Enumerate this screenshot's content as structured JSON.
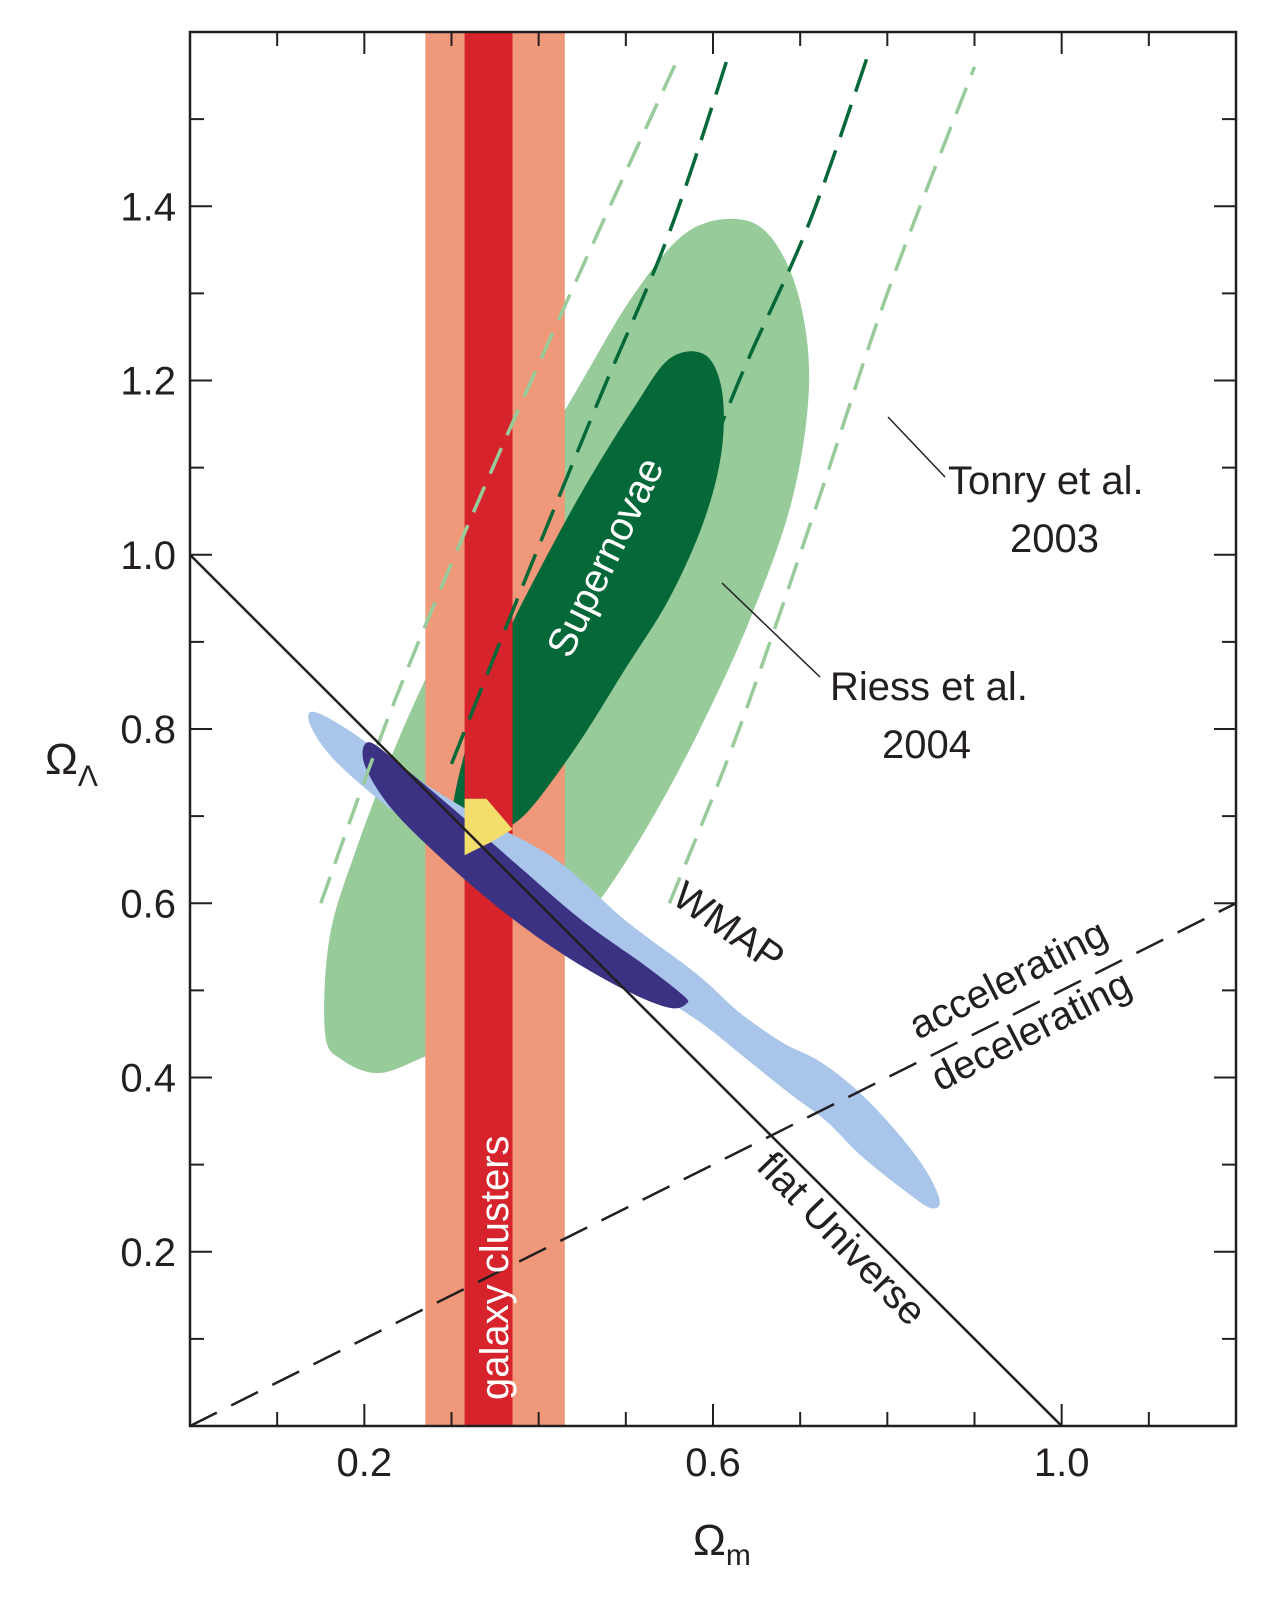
{
  "chart_data": {
    "type": "contour",
    "xlabel": "Ω",
    "xlabel_sub": "m",
    "ylabel": "Ω",
    "ylabel_sub": "Λ",
    "xlim": [
      0.0,
      1.2
    ],
    "ylim": [
      0.0,
      1.6
    ],
    "xticks": [
      0.2,
      0.6,
      1.0
    ],
    "xtick_labels": [
      "0.2",
      "0.6",
      "1.0"
    ],
    "xminor_step": 0.1,
    "yticks": [
      0.2,
      0.4,
      0.6,
      0.8,
      1.0,
      1.2,
      1.4
    ],
    "ytick_labels": [
      "0.2",
      "0.4",
      "0.6",
      "0.8",
      "1.0",
      "1.2",
      "1.4"
    ],
    "yminor_step": 0.1,
    "colors": {
      "cluster_outer": "#f0997a",
      "cluster_inner": "#d7232b",
      "sn_outer": "#98cb9a",
      "sn_inner": "#056838",
      "wmap_outer": "#a9c6ea",
      "wmap_inner": "#3b3283",
      "overlap": "#f3dd6b",
      "line": "#231f20"
    },
    "galaxy_clusters": {
      "label": "galaxy clusters",
      "outer_band": [
        0.27,
        0.43
      ],
      "inner_band": [
        0.315,
        0.37
      ]
    },
    "supernovae": {
      "label": "Supernovae",
      "outer": [
        [
          0.155,
          0.45
        ],
        [
          0.16,
          0.56
        ],
        [
          0.19,
          0.66
        ],
        [
          0.24,
          0.79
        ],
        [
          0.3,
          0.92
        ],
        [
          0.37,
          1.06
        ],
        [
          0.45,
          1.2
        ],
        [
          0.51,
          1.3
        ],
        [
          0.57,
          1.37
        ],
        [
          0.63,
          1.385
        ],
        [
          0.67,
          1.36
        ],
        [
          0.7,
          1.29
        ],
        [
          0.71,
          1.19
        ],
        [
          0.69,
          1.06
        ],
        [
          0.64,
          0.92
        ],
        [
          0.58,
          0.79
        ],
        [
          0.52,
          0.68
        ],
        [
          0.46,
          0.59
        ],
        [
          0.39,
          0.51
        ],
        [
          0.32,
          0.45
        ],
        [
          0.26,
          0.42
        ],
        [
          0.215,
          0.405
        ],
        [
          0.175,
          0.42
        ]
      ],
      "inner": [
        [
          0.3,
          0.7
        ],
        [
          0.32,
          0.79
        ],
        [
          0.36,
          0.9
        ],
        [
          0.41,
          1.0
        ],
        [
          0.46,
          1.09
        ],
        [
          0.51,
          1.17
        ],
        [
          0.55,
          1.225
        ],
        [
          0.59,
          1.23
        ],
        [
          0.61,
          1.19
        ],
        [
          0.61,
          1.12
        ],
        [
          0.59,
          1.04
        ],
        [
          0.55,
          0.95
        ],
        [
          0.5,
          0.87
        ],
        [
          0.45,
          0.79
        ],
        [
          0.4,
          0.72
        ],
        [
          0.37,
          0.69
        ],
        [
          0.33,
          0.67
        ],
        [
          0.31,
          0.675
        ]
      ]
    },
    "wmap": {
      "label": "WMAP",
      "outer": [
        [
          0.14,
          0.82
        ],
        [
          0.18,
          0.8
        ],
        [
          0.25,
          0.75
        ],
        [
          0.33,
          0.7
        ],
        [
          0.42,
          0.65
        ],
        [
          0.5,
          0.58
        ],
        [
          0.58,
          0.52
        ],
        [
          0.63,
          0.475
        ],
        [
          0.68,
          0.44
        ],
        [
          0.72,
          0.42
        ],
        [
          0.76,
          0.39
        ],
        [
          0.8,
          0.35
        ],
        [
          0.84,
          0.3
        ],
        [
          0.86,
          0.26
        ],
        [
          0.85,
          0.25
        ],
        [
          0.82,
          0.27
        ],
        [
          0.77,
          0.31
        ],
        [
          0.73,
          0.35
        ],
        [
          0.69,
          0.38
        ],
        [
          0.64,
          0.42
        ],
        [
          0.59,
          0.46
        ],
        [
          0.53,
          0.5
        ],
        [
          0.46,
          0.55
        ],
        [
          0.38,
          0.6
        ],
        [
          0.31,
          0.65
        ],
        [
          0.24,
          0.7
        ],
        [
          0.17,
          0.76
        ],
        [
          0.14,
          0.8
        ]
      ],
      "inner": [
        [
          0.205,
          0.785
        ],
        [
          0.24,
          0.76
        ],
        [
          0.3,
          0.71
        ],
        [
          0.38,
          0.64
        ],
        [
          0.45,
          0.58
        ],
        [
          0.52,
          0.53
        ],
        [
          0.565,
          0.495
        ],
        [
          0.57,
          0.485
        ],
        [
          0.55,
          0.48
        ],
        [
          0.5,
          0.5
        ],
        [
          0.43,
          0.54
        ],
        [
          0.36,
          0.59
        ],
        [
          0.29,
          0.65
        ],
        [
          0.23,
          0.71
        ],
        [
          0.2,
          0.76
        ]
      ]
    },
    "overlap_region": {
      "points": [
        [
          0.315,
          0.655
        ],
        [
          0.315,
          0.72
        ],
        [
          0.34,
          0.72
        ],
        [
          0.37,
          0.685
        ],
        [
          0.345,
          0.67
        ]
      ]
    },
    "flat_universe": {
      "label": "flat Universe",
      "from": [
        0.0,
        1.0
      ],
      "to": [
        1.0,
        0.0
      ]
    },
    "accel_boundary": {
      "label_top": "accelerating",
      "label_bottom": "decelerating",
      "from": [
        0.0,
        0.0
      ],
      "to": [
        1.2,
        0.6
      ]
    },
    "tonry_2003": {
      "label_line1": "Tonry et al.",
      "label_line2": "2003",
      "lines": [
        [
          [
            0.15,
            0.6
          ],
          [
            0.23,
            0.82
          ],
          [
            0.33,
            1.06
          ],
          [
            0.45,
            1.33
          ],
          [
            0.56,
            1.57
          ]
        ],
        [
          [
            0.55,
            0.6
          ],
          [
            0.63,
            0.8
          ],
          [
            0.72,
            1.06
          ],
          [
            0.8,
            1.3
          ],
          [
            0.9,
            1.56
          ]
        ]
      ]
    },
    "riess_2004": {
      "label_line1": "Riess et al.",
      "label_line2": "2004",
      "lines": [
        [
          [
            0.3,
            0.76
          ],
          [
            0.38,
            0.96
          ],
          [
            0.47,
            1.18
          ],
          [
            0.55,
            1.37
          ],
          [
            0.62,
            1.58
          ]
        ],
        [
          [
            0.56,
            1.02
          ],
          [
            0.63,
            1.2
          ],
          [
            0.71,
            1.38
          ],
          [
            0.78,
            1.58
          ]
        ]
      ]
    }
  }
}
